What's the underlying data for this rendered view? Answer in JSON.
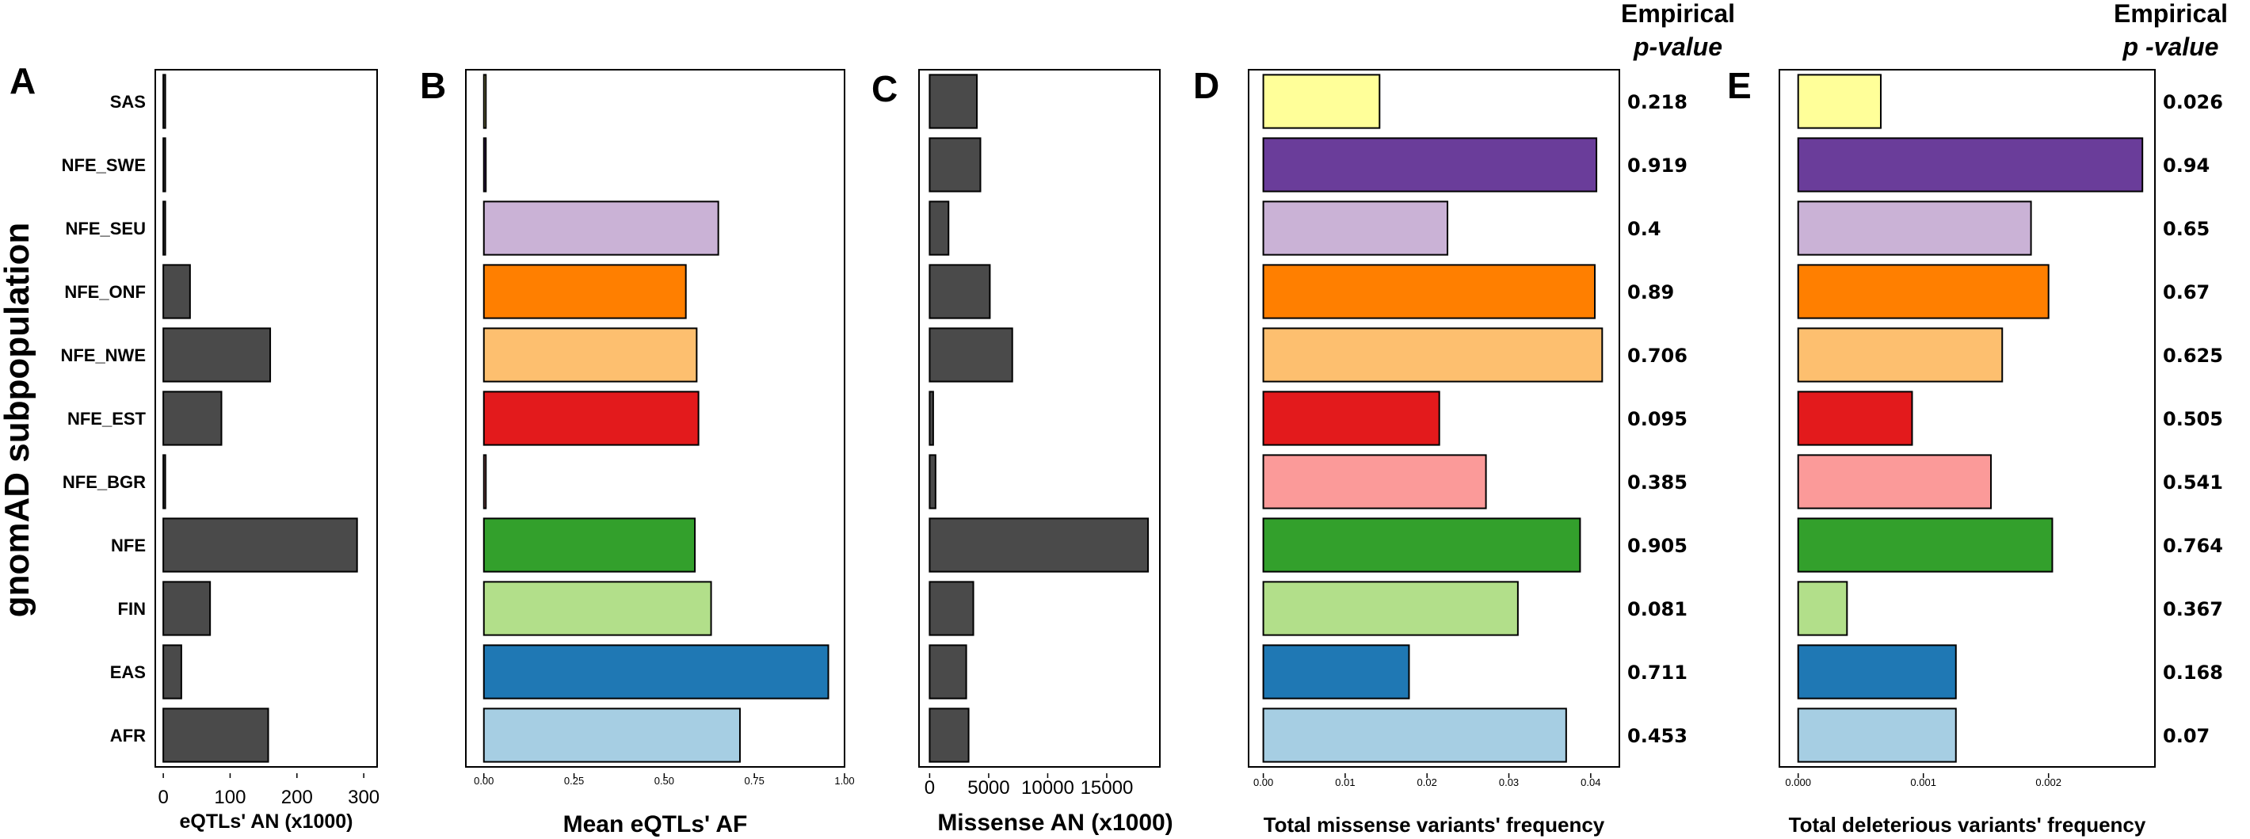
{
  "y_axis_label": "gnomAD subpopulation",
  "colors": {
    "dark_gray": "#4a4a4a",
    "palette": [
      "#ffff99",
      "#6a3d9a",
      "#cab2d6",
      "#ff7f00",
      "#fdbf6f",
      "#e31a1c",
      "#fb9a99",
      "#33a02c",
      "#b2df8a",
      "#1f78b4",
      "#a6cee3"
    ]
  },
  "chart_data": [
    {
      "id": "A",
      "panel_label": "A",
      "type": "bar",
      "orientation": "horizontal",
      "categories": [
        "SAS",
        "NFE_SWE",
        "NFE_SEU",
        "NFE_ONF",
        "NFE_NWE",
        "NFE_EST",
        "NFE_BGR",
        "NFE",
        "FIN",
        "EAS",
        "AFR"
      ],
      "values": [
        0,
        0,
        2,
        40,
        160,
        87,
        0,
        290,
        70,
        27,
        157
      ],
      "xlim": [
        -12,
        320
      ],
      "xticks": [
        0,
        100,
        200,
        300
      ],
      "xtick_labels": [
        "0",
        "100",
        "200",
        "300"
      ],
      "xlabel": "eQTLs' AN (x1000)",
      "ylabel": "gnomAD subpopulation",
      "colored": false
    },
    {
      "id": "B",
      "panel_label": "B",
      "type": "bar",
      "orientation": "horizontal",
      "categories": [
        "SAS",
        "NFE_SWE",
        "NFE_SEU",
        "NFE_ONF",
        "NFE_NWE",
        "NFE_EST",
        "NFE_BGR",
        "NFE",
        "FIN",
        "EAS",
        "AFR"
      ],
      "values": [
        0,
        0,
        0.65,
        0.56,
        0.59,
        0.595,
        0,
        0.585,
        0.63,
        0.955,
        0.71
      ],
      "xlim": [
        -0.05,
        1.0
      ],
      "xticks": [
        0,
        0.25,
        0.5,
        0.75,
        1.0
      ],
      "xtick_labels": [
        "0.00",
        "0.25",
        "0.50",
        "0.75",
        "1.00"
      ],
      "xlabel": "Mean eQTLs' AF",
      "colored": true
    },
    {
      "id": "C",
      "panel_label": "C",
      "type": "bar",
      "orientation": "horizontal",
      "categories": [
        "SAS",
        "NFE_SWE",
        "NFE_SEU",
        "NFE_ONF",
        "NFE_NWE",
        "NFE_EST",
        "NFE_BGR",
        "NFE",
        "FIN",
        "EAS",
        "AFR"
      ],
      "values": [
        4000,
        4300,
        1600,
        5100,
        7000,
        300,
        500,
        18500,
        3700,
        3100,
        3300
      ],
      "xlim": [
        -900,
        19500
      ],
      "xticks": [
        0,
        5000,
        10000,
        15000
      ],
      "xtick_labels": [
        "0",
        "5000",
        "10000",
        "15000"
      ],
      "xlabel": "Missense AN (x1000)",
      "colored": false
    },
    {
      "id": "D",
      "panel_label": "D",
      "type": "bar",
      "orientation": "horizontal",
      "categories": [
        "SAS",
        "NFE_SWE",
        "NFE_SEU",
        "NFE_ONF",
        "NFE_NWE",
        "NFE_EST",
        "NFE_BGR",
        "NFE",
        "FIN",
        "EAS",
        "AFR"
      ],
      "values": [
        0.0142,
        0.0407,
        0.0225,
        0.0405,
        0.0414,
        0.0215,
        0.0272,
        0.0387,
        0.0311,
        0.0178,
        0.037
      ],
      "xlim": [
        -0.0018,
        0.0435
      ],
      "xticks": [
        0,
        0.01,
        0.02,
        0.03,
        0.04
      ],
      "xtick_labels": [
        "0.00",
        "0.01",
        "0.02",
        "0.03",
        "0.04"
      ],
      "xlabel": "Total missense variants' frequency",
      "colored": true,
      "pvalue_header": [
        "Empirical",
        "p-value"
      ],
      "pvalues": [
        "0.218",
        "0.919",
        "0.4",
        "0.89",
        "0.706",
        "0.095",
        "0.385",
        "0.905",
        "0.081",
        "0.711",
        "0.453"
      ]
    },
    {
      "id": "E",
      "panel_label": "E",
      "type": "bar",
      "orientation": "horizontal",
      "categories": [
        "SAS",
        "NFE_SWE",
        "NFE_SEU",
        "NFE_ONF",
        "NFE_NWE",
        "NFE_EST",
        "NFE_BGR",
        "NFE",
        "FIN",
        "EAS",
        "AFR"
      ],
      "values": [
        0.00066,
        0.00275,
        0.00186,
        0.002,
        0.00163,
        0.00091,
        0.00154,
        0.00203,
        0.00039,
        0.00126,
        0.00126
      ],
      "xlim": [
        -0.00015,
        0.00285
      ],
      "xticks": [
        0,
        0.001,
        0.002
      ],
      "xtick_labels": [
        "0.000",
        "0.001",
        "0.002"
      ],
      "xlabel": "Total deleterious variants' frequency",
      "colored": true,
      "pvalue_header": [
        "Empirical",
        "p -value"
      ],
      "pvalues": [
        "0.026",
        "0.94",
        "0.65",
        "0.67",
        "0.625",
        "0.505",
        "0.541",
        "0.764",
        "0.367",
        "0.168",
        "0.07"
      ]
    }
  ]
}
